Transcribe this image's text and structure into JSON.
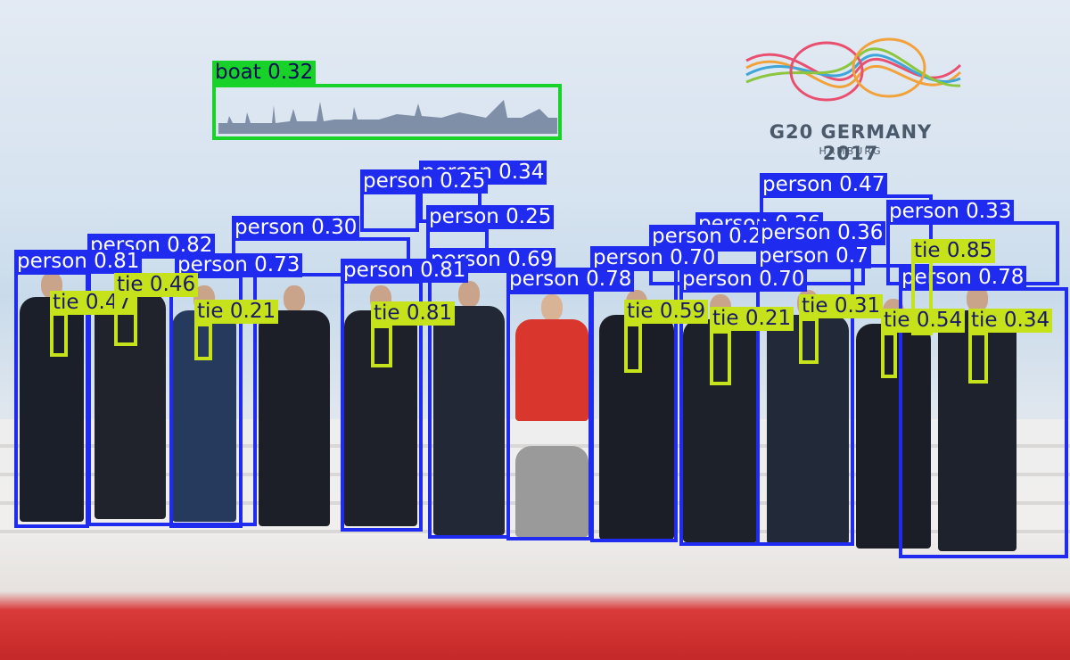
{
  "backdrop": {
    "logo_text": "G20 GERMANY 2017",
    "logo_subtitle": "HAMBURG"
  },
  "detections": [
    {
      "label": "boat 0.32",
      "cls": "boat"
    },
    {
      "label": "person 0.34",
      "cls": "person"
    },
    {
      "label": "person 0.25",
      "cls": "person"
    },
    {
      "label": "person 0.26",
      "cls": "person"
    },
    {
      "label": "person 0.47",
      "cls": "person"
    },
    {
      "label": "person 0.33",
      "cls": "person"
    },
    {
      "label": "person 0.30",
      "cls": "person"
    },
    {
      "label": "person 0.25",
      "cls": "person"
    },
    {
      "label": "person 0.26",
      "cls": "person"
    },
    {
      "label": "person 0.36",
      "cls": "person"
    },
    {
      "label": "person 0.82",
      "cls": "person"
    },
    {
      "label": "person 0.81",
      "cls": "person"
    },
    {
      "label": "person 0.73",
      "cls": "person"
    },
    {
      "label": "person 0.69",
      "cls": "person"
    },
    {
      "label": "person 0.70",
      "cls": "person"
    },
    {
      "label": "person 0.7",
      "cls": "person"
    },
    {
      "label": "person 0.78",
      "cls": "person"
    },
    {
      "label": "person 0.78",
      "cls": "person"
    },
    {
      "label": "person 0.70",
      "cls": "person"
    },
    {
      "label": "person 0.81",
      "cls": "person"
    },
    {
      "label": "tie 0.85",
      "cls": "tie"
    },
    {
      "label": "tie 0.47",
      "cls": "tie"
    },
    {
      "label": "tie 0.46",
      "cls": "tie"
    },
    {
      "label": "tie 0.21",
      "cls": "tie"
    },
    {
      "label": "tie 0.81",
      "cls": "tie"
    },
    {
      "label": "tie 0.59",
      "cls": "tie"
    },
    {
      "label": "tie 0.21",
      "cls": "tie"
    },
    {
      "label": "tie 0.31",
      "cls": "tie"
    },
    {
      "label": "tie 0.54",
      "cls": "tie"
    },
    {
      "label": "tie 0.34",
      "cls": "tie"
    }
  ]
}
